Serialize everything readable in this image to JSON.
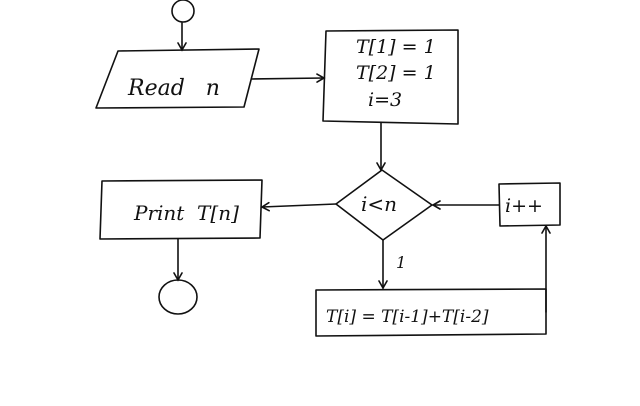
{
  "diagram": {
    "read_label": "Read   n",
    "init_line_1": "T[1] = 1",
    "init_line_2": "T[2] = 1",
    "init_line_3": "i=3",
    "condition": "i<n",
    "print_label": "Print  T[n]",
    "increment": "i++",
    "assignment": "T[i] = T[i-1]+T[i-2]",
    "true_branch_label": "1"
  },
  "colors": {
    "ink": "#111111",
    "background": "#ffffff"
  }
}
